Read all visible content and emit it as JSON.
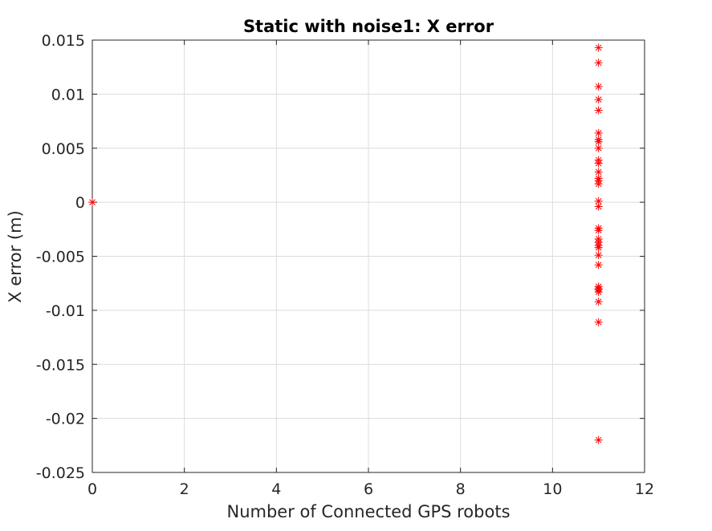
{
  "chart_data": {
    "type": "scatter",
    "title": "Static with noise1: X error",
    "xlabel": "Number of Connected GPS robots",
    "ylabel": "X error (m)",
    "xlim": [
      0,
      12
    ],
    "ylim": [
      -0.025,
      0.015
    ],
    "x_ticks": [
      0,
      2,
      4,
      6,
      8,
      10,
      12
    ],
    "y_ticks": [
      0.015,
      0.01,
      0.005,
      0,
      -0.005,
      -0.01,
      -0.015,
      -0.02,
      -0.025
    ],
    "x_tick_labels": [
      "0",
      "2",
      "4",
      "6",
      "8",
      "10",
      "12"
    ],
    "y_tick_labels": [
      "0.015",
      "0.01",
      "0.005",
      "0",
      "-0.005",
      "-0.01",
      "-0.015",
      "-0.02",
      "-0.025"
    ],
    "grid": true,
    "marker": "asterisk",
    "marker_color": "#ff0000",
    "series": [
      {
        "x": [
          0,
          11,
          11,
          11,
          11,
          11,
          11,
          11,
          11,
          11,
          11,
          11,
          11,
          11,
          11,
          11,
          11,
          11,
          11,
          11,
          11,
          11,
          11,
          11,
          11,
          11,
          11,
          11,
          11,
          11,
          11,
          11,
          11
        ],
        "y": [
          0,
          0.0143,
          0.0129,
          0.0107,
          0.0095,
          0.0085,
          0.0064,
          0.0058,
          0.0056,
          0.005,
          0.0039,
          0.0036,
          0.0028,
          0.0022,
          0.002,
          0.0017,
          0.0001,
          -0.0024,
          -0.0026,
          -0.0034,
          -0.0037,
          -0.004,
          -0.0042,
          -0.0049,
          -0.0058,
          -0.0078,
          -0.008,
          -0.0081,
          -0.0083,
          -0.0092,
          -0.0111,
          -0.022,
          -0.0004
        ]
      }
    ]
  }
}
